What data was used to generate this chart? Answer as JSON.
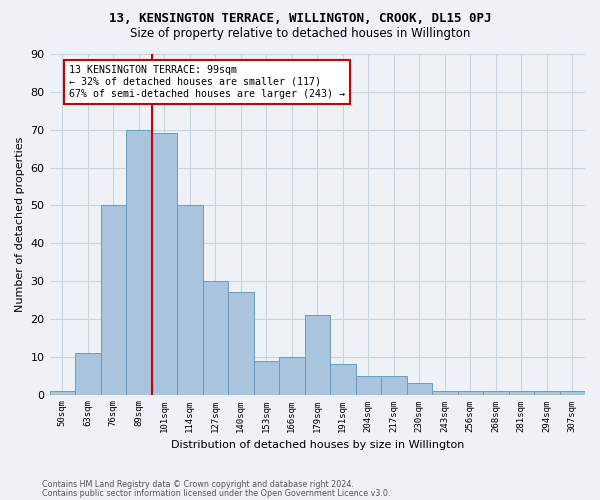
{
  "title": "13, KENSINGTON TERRACE, WILLINGTON, CROOK, DL15 0PJ",
  "subtitle": "Size of property relative to detached houses in Willington",
  "xlabel": "Distribution of detached houses by size in Willington",
  "ylabel": "Number of detached properties",
  "bar_values": [
    1,
    11,
    50,
    70,
    69,
    50,
    30,
    27,
    9,
    10,
    21,
    8,
    5,
    5,
    3,
    1,
    1,
    1,
    1,
    1,
    1
  ],
  "bin_labels": [
    "50sqm",
    "63sqm",
    "76sqm",
    "89sqm",
    "101sqm",
    "114sqm",
    "127sqm",
    "140sqm",
    "153sqm",
    "166sqm",
    "179sqm",
    "191sqm",
    "204sqm",
    "217sqm",
    "230sqm",
    "243sqm",
    "256sqm",
    "268sqm",
    "281sqm",
    "294sqm",
    "307sqm"
  ],
  "bar_color": "#aac4de",
  "bar_edge_color": "#6a9cbf",
  "property_bin_index": 3,
  "vline_color": "#cc0000",
  "annotation_line1": "13 KENSINGTON TERRACE: 99sqm",
  "annotation_line2": "← 32% of detached houses are smaller (117)",
  "annotation_line3": "67% of semi-detached houses are larger (243) →",
  "annotation_box_color": "#ffffff",
  "annotation_box_edge_color": "#cc0000",
  "footnote1": "Contains HM Land Registry data © Crown copyright and database right 2024.",
  "footnote2": "Contains public sector information licensed under the Open Government Licence v3.0.",
  "bg_color": "#eef2f7",
  "grid_color": "#c8d4e0",
  "ylim": [
    0,
    90
  ],
  "yticks": [
    0,
    10,
    20,
    30,
    40,
    50,
    60,
    70,
    80,
    90
  ]
}
